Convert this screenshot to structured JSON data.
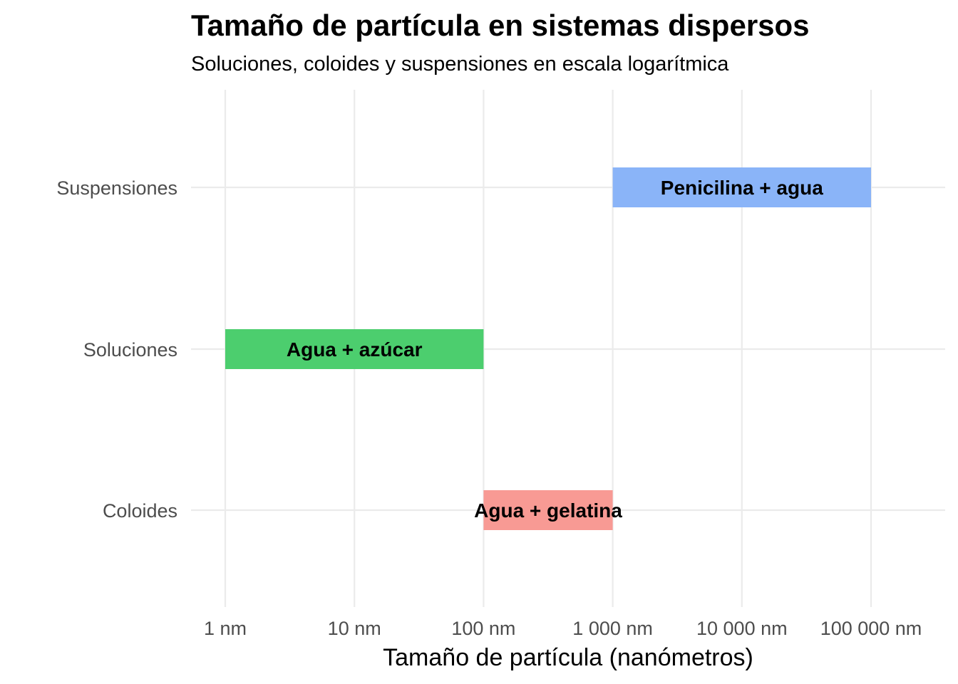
{
  "chart_data": {
    "type": "bar",
    "orientation": "horizontal-range",
    "title": "Tamaño de partícula en sistemas dispersos",
    "subtitle": "Soluciones, coloides y suspensiones en escala logarítmica",
    "xlabel": "Tamaño de partícula (nanómetros)",
    "ylabel": "",
    "x_scale": "log10",
    "xlim": [
      1,
      100000
    ],
    "x_ticks": [
      {
        "value": 1,
        "label": "1 nm"
      },
      {
        "value": 10,
        "label": "10 nm"
      },
      {
        "value": 100,
        "label": "100 nm"
      },
      {
        "value": 1000,
        "label": "1 000 nm"
      },
      {
        "value": 10000,
        "label": "10 000 nm"
      },
      {
        "value": 100000,
        "label": "100 000 nm"
      }
    ],
    "categories": [
      "Suspensiones",
      "Soluciones",
      "Coloides"
    ],
    "grid": true,
    "legend": "none",
    "bars": [
      {
        "category": "Suspensiones",
        "start": 1000,
        "end": 100000,
        "label": "Penicilina + agua",
        "color": "#8ab4f8"
      },
      {
        "category": "Soluciones",
        "start": 1,
        "end": 100,
        "label": "Agua + azúcar",
        "color": "#4cce6e"
      },
      {
        "category": "Coloides",
        "start": 100,
        "end": 1000,
        "label": "Agua + gelatina",
        "color": "#f89a94"
      }
    ]
  }
}
